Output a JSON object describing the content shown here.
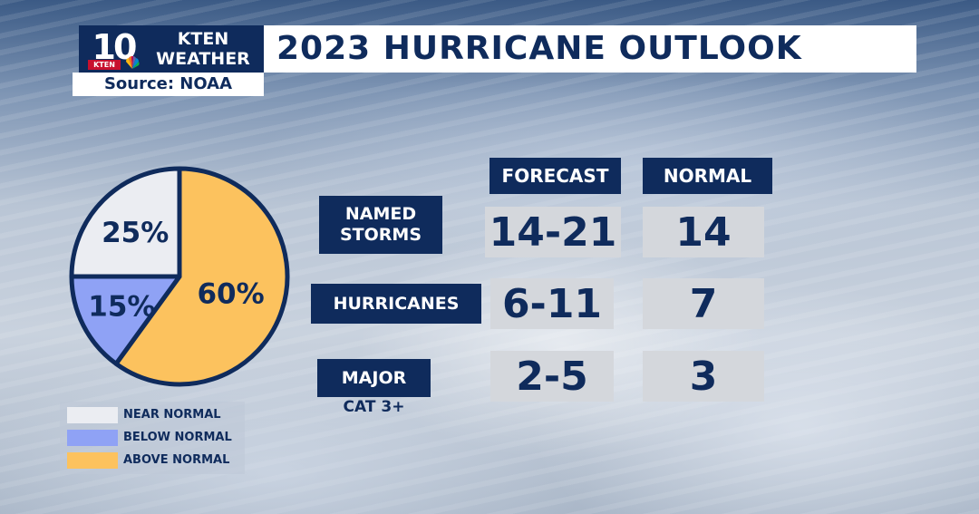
{
  "header": {
    "logo_number": "10",
    "logo_kten": "KTEN",
    "logo_line1": "KTEN",
    "logo_line2": "WEATHER",
    "source": "Source: NOAA",
    "title": "2023 HURRICANE OUTLOOK"
  },
  "colors": {
    "navy": "#0f2b5c",
    "near_normal": "#ebedf2",
    "below_normal": "#8fa2f5",
    "above_normal": "#fcc25e"
  },
  "chart_data": {
    "type": "pie",
    "title": "",
    "slices": [
      {
        "label": "ABOVE NORMAL",
        "value": 60,
        "text": "60%",
        "color": "#fcc25e"
      },
      {
        "label": "BELOW NORMAL",
        "value": 15,
        "text": "15%",
        "color": "#8fa2f5"
      },
      {
        "label": "NEAR NORMAL",
        "value": 25,
        "text": "25%",
        "color": "#ebedf2"
      }
    ],
    "legend": {
      "placement": "bottom-left",
      "items": [
        {
          "label": "NEAR NORMAL",
          "color": "#ebedf2"
        },
        {
          "label": "BELOW NORMAL",
          "color": "#8fa2f5"
        },
        {
          "label": "ABOVE NORMAL",
          "color": "#fcc25e"
        }
      ]
    }
  },
  "table": {
    "headers": [
      "FORECAST",
      "NORMAL"
    ],
    "rows": [
      {
        "label_line1": "NAMED",
        "label_line2": "STORMS",
        "sublabel": "",
        "forecast": "14-21",
        "normal": "14"
      },
      {
        "label_line1": "HURRICANES",
        "label_line2": "",
        "sublabel": "",
        "forecast": "6-11",
        "normal": "7"
      },
      {
        "label_line1": "MAJOR",
        "label_line2": "",
        "sublabel": "CAT 3+",
        "forecast": "2-5",
        "normal": "3"
      }
    ]
  }
}
